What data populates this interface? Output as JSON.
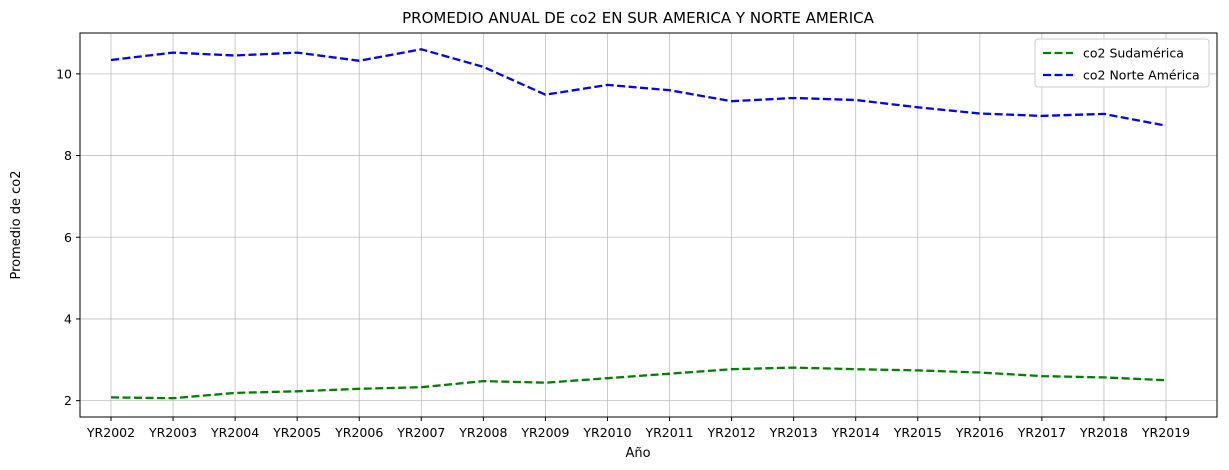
{
  "chart_data": {
    "type": "line",
    "title": "PROMEDIO ANUAL DE co2 EN SUR AMERICA Y NORTE AMERICA",
    "xlabel": "Año",
    "ylabel": "Promedio de co2",
    "categories": [
      "YR2002",
      "YR2003",
      "YR2004",
      "YR2005",
      "YR2006",
      "YR2007",
      "YR2008",
      "YR2009",
      "YR2010",
      "YR2011",
      "YR2012",
      "YR2013",
      "YR2014",
      "YR2015",
      "YR2016",
      "YR2017",
      "YR2018",
      "YR2019"
    ],
    "ylim": [
      1.6,
      11.0
    ],
    "yticks": [
      2,
      4,
      6,
      8,
      10
    ],
    "grid": true,
    "legend_position": "top-right",
    "series": [
      {
        "name": "co2 Sudamérica",
        "color": "#008000",
        "style": "dashed",
        "values": [
          2.08,
          2.06,
          2.19,
          2.23,
          2.29,
          2.33,
          2.48,
          2.44,
          2.55,
          2.66,
          2.77,
          2.81,
          2.77,
          2.74,
          2.69,
          2.6,
          2.57,
          2.5
        ]
      },
      {
        "name": "co2 Norte América",
        "color": "#0000ff",
        "style": "dashed",
        "values": [
          10.34,
          10.52,
          10.45,
          10.52,
          10.32,
          10.6,
          10.17,
          9.49,
          9.73,
          9.6,
          9.33,
          9.41,
          9.36,
          9.18,
          9.03,
          8.97,
          9.02,
          8.73
        ]
      }
    ]
  }
}
